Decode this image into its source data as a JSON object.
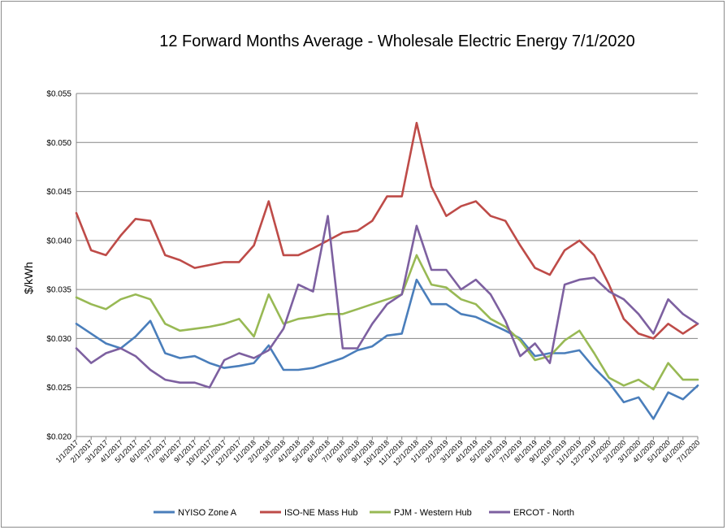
{
  "chart_data": {
    "type": "line",
    "title": "12 Forward Months Average - Wholesale Electric Energy 7/1/2020",
    "ylabel": "$/kWh",
    "xlabel": "",
    "ylim": [
      0.02,
      0.055
    ],
    "y_ticks": [
      0.02,
      0.025,
      0.03,
      0.035,
      0.04,
      0.045,
      0.05,
      0.055
    ],
    "y_tick_labels": [
      "$0.020",
      "$0.025",
      "$0.030",
      "$0.035",
      "$0.040",
      "$0.045",
      "$0.050",
      "$0.055"
    ],
    "x_tick_labels": [
      "1/1/2017",
      "2/1/2017",
      "3/1/2017",
      "4/1/2017",
      "5/1/2017",
      "6/1/2017",
      "7/1/2017",
      "8/1/2017",
      "9/1/2017",
      "10/1/2017",
      "11/1/2017",
      "12/1/2017",
      "1/1/2018",
      "2/1/2018",
      "3/1/2018",
      "4/1/2018",
      "5/1/2018",
      "6/1/2018",
      "7/1/2018",
      "8/1/2018",
      "9/1/2018",
      "10/1/2018",
      "11/1/2018",
      "12/1/2018",
      "1/1/2019",
      "2/1/2019",
      "3/1/2019",
      "4/1/2019",
      "5/1/2019",
      "6/1/2019",
      "7/1/2019",
      "8/1/2019",
      "9/1/2019",
      "10/1/2019",
      "11/1/2019",
      "12/1/2019",
      "1/1/2020",
      "2/1/2020",
      "3/1/2020",
      "4/1/2020",
      "5/1/2020",
      "6/1/2020",
      "7/1/2020"
    ],
    "grid": true,
    "legend_position": "bottom",
    "series": [
      {
        "name": "NYISO Zone A",
        "color": "#4a7ebb",
        "values": [
          0.0315,
          0.0305,
          0.0295,
          0.029,
          0.0302,
          0.0318,
          0.0285,
          0.028,
          0.0282,
          0.0275,
          0.027,
          0.0272,
          0.0275,
          0.0293,
          0.0268,
          0.0268,
          0.027,
          0.0275,
          0.028,
          0.0288,
          0.0292,
          0.0303,
          0.0305,
          0.036,
          0.0335,
          0.0335,
          0.0325,
          0.0322,
          0.0315,
          0.0308,
          0.03,
          0.0282,
          0.0285,
          0.0285,
          0.0288,
          0.027,
          0.0255,
          0.0235,
          0.024,
          0.0218,
          0.0245,
          0.0238,
          0.0252
        ]
      },
      {
        "name": "ISO-NE Mass Hub",
        "color": "#be4b48",
        "values": [
          0.0428,
          0.039,
          0.0385,
          0.0405,
          0.0422,
          0.042,
          0.0385,
          0.038,
          0.0372,
          0.0375,
          0.0378,
          0.0378,
          0.0395,
          0.044,
          0.0385,
          0.0385,
          0.0392,
          0.04,
          0.0408,
          0.041,
          0.042,
          0.0445,
          0.0445,
          0.052,
          0.0455,
          0.0425,
          0.0435,
          0.044,
          0.0425,
          0.042,
          0.0395,
          0.0372,
          0.0365,
          0.039,
          0.04,
          0.0385,
          0.0355,
          0.032,
          0.0305,
          0.03,
          0.0315,
          0.0305,
          0.0315
        ]
      },
      {
        "name": "PJM - Western Hub",
        "color": "#98b954",
        "values": [
          0.0342,
          0.0335,
          0.033,
          0.034,
          0.0345,
          0.034,
          0.0315,
          0.0308,
          0.031,
          0.0312,
          0.0315,
          0.032,
          0.0302,
          0.0345,
          0.0315,
          0.032,
          0.0322,
          0.0325,
          0.0325,
          0.033,
          0.0335,
          0.034,
          0.0345,
          0.0385,
          0.0355,
          0.0352,
          0.034,
          0.0335,
          0.032,
          0.0312,
          0.0298,
          0.0278,
          0.0282,
          0.0298,
          0.0308,
          0.0285,
          0.026,
          0.0252,
          0.0258,
          0.0248,
          0.0275,
          0.0258,
          0.0258
        ]
      },
      {
        "name": "ERCOT - North",
        "color": "#7d60a0",
        "values": [
          0.029,
          0.0275,
          0.0285,
          0.029,
          0.0282,
          0.0268,
          0.0258,
          0.0255,
          0.0255,
          0.025,
          0.0278,
          0.0285,
          0.028,
          0.0288,
          0.031,
          0.0355,
          0.0348,
          0.0425,
          0.029,
          0.029,
          0.0315,
          0.0335,
          0.0345,
          0.0415,
          0.037,
          0.037,
          0.035,
          0.036,
          0.0345,
          0.0318,
          0.0282,
          0.0295,
          0.0275,
          0.0355,
          0.036,
          0.0362,
          0.0348,
          0.034,
          0.0325,
          0.0305,
          0.034,
          0.0325,
          0.0315
        ]
      }
    ]
  }
}
